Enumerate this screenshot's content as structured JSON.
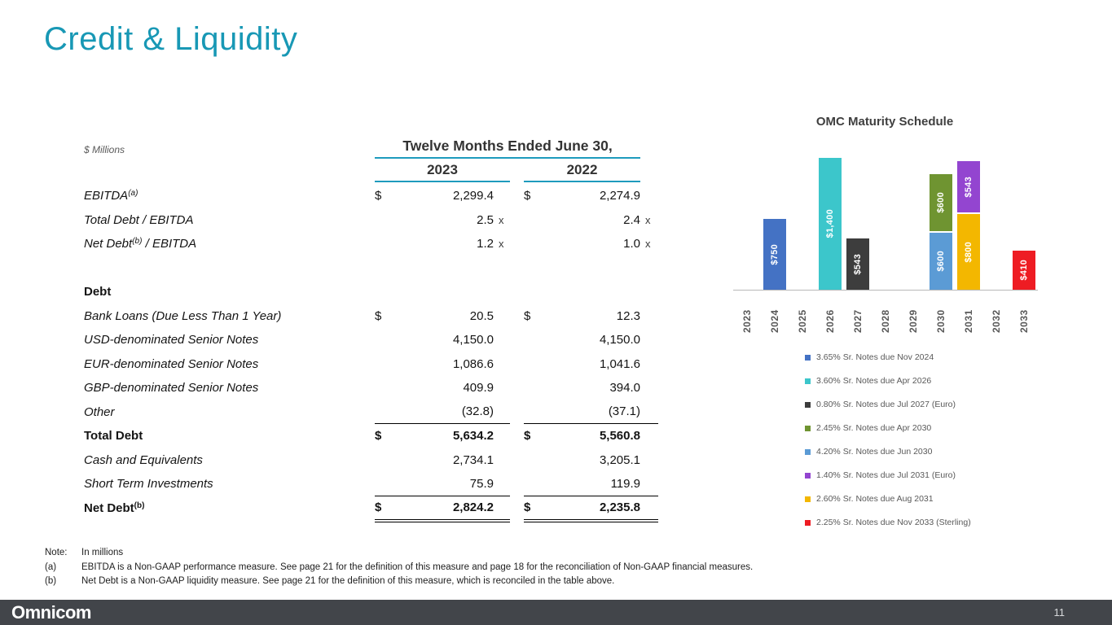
{
  "slide": {
    "title": "Credit & Liquidity",
    "page_number": "11",
    "logo_text": "Omnicom"
  },
  "table": {
    "units_label": "$ Millions",
    "period_header": "Twelve Months Ended June 30,",
    "col_2023": "2023",
    "col_2022": "2022",
    "rows": [
      {
        "label": "EBITDA",
        "sup": "(a)",
        "d1": "$",
        "v1": "2,299.4",
        "d2": "$",
        "v2": "2,274.9"
      },
      {
        "label": "Total Debt / EBITDA",
        "v1": "2.5",
        "x1": "x",
        "v2": "2.4",
        "x2": "x"
      },
      {
        "label": "Net Debt",
        "sup": "(b)",
        "label2": " / EBITDA",
        "v1": "1.2",
        "x1": "x",
        "v2": "1.0",
        "x2": "x"
      },
      {
        "label": "Debt"
      },
      {
        "label": "Bank Loans (Due Less Than 1 Year)",
        "d1": "$",
        "v1": "20.5",
        "d2": "$",
        "v2": "12.3"
      },
      {
        "label": "USD-denominated Senior Notes",
        "v1": "4,150.0",
        "v2": "4,150.0"
      },
      {
        "label": "EUR-denominated Senior Notes",
        "v1": "1,086.6",
        "v2": "1,041.6"
      },
      {
        "label": "GBP-denominated Senior Notes",
        "v1": "409.9",
        "v2": "394.0"
      },
      {
        "label": "Other",
        "v1": "(32.8)",
        "v2": "(37.1)"
      },
      {
        "label": "Total Debt",
        "d1": "$",
        "v1": "5,634.2",
        "d2": "$",
        "v2": "5,560.8"
      },
      {
        "label": "Cash and Equivalents",
        "v1": "2,734.1",
        "v2": "3,205.1"
      },
      {
        "label": "Short Term Investments",
        "v1": "75.9",
        "v2": "119.9"
      },
      {
        "label": "Net Debt",
        "sup": "(b)",
        "d1": "$",
        "v1": "2,824.2",
        "d2": "$",
        "v2": "2,235.8"
      }
    ]
  },
  "chart_data": {
    "type": "bar",
    "title": "OMC Maturity Schedule",
    "unit": "$ Millions",
    "xlabel": "",
    "ylabel": "",
    "ylim": [
      0,
      1400
    ],
    "grid": false,
    "legend_position": "bottom-left",
    "x": [
      "2023",
      "2024",
      "2025",
      "2026",
      "2027",
      "2028",
      "2029",
      "2030",
      "2031",
      "2032",
      "2033"
    ],
    "bars": [
      {
        "year": "2024",
        "total": 750,
        "segments": [
          {
            "series": "3.65% Sr. Notes due Nov 2024",
            "label": "$750",
            "value": 750,
            "color": "#4472c4"
          }
        ]
      },
      {
        "year": "2026",
        "total": 1400,
        "segments": [
          {
            "series": "3.60% Sr. Notes due Apr 2026",
            "label": "$1,400",
            "value": 1400,
            "color": "#3cc6cb"
          }
        ]
      },
      {
        "year": "2027",
        "total": 543,
        "segments": [
          {
            "series": "0.80% Sr. Notes due Jul 2027 (Euro)",
            "label": "$543",
            "value": 543,
            "color": "#3d3d3d"
          }
        ]
      },
      {
        "year": "2030",
        "total": 1200,
        "segments": [
          {
            "series": "2.45% Sr. Notes due Apr 2030",
            "label": "$600",
            "value": 600,
            "color": "#6f9431"
          },
          {
            "series": "4.20% Sr. Notes due Jun 2030",
            "label": "$600",
            "value": 600,
            "color": "#5b9bd5"
          }
        ]
      },
      {
        "year": "2031",
        "total": 1343,
        "segments": [
          {
            "series": "1.40% Sr. Notes due Jul 2031 (Euro)",
            "label": "$543",
            "value": 543,
            "color": "#9345d0"
          },
          {
            "series": "2.60% Sr. Notes due Aug 2031",
            "label": "$800",
            "value": 800,
            "color": "#f3b700"
          }
        ]
      },
      {
        "year": "2033",
        "total": 410,
        "segments": [
          {
            "series": "2.25% Sr. Notes due Nov 2033 (Sterling)",
            "label": "$410",
            "value": 410,
            "color": "#ee1c23"
          }
        ]
      }
    ],
    "legend": [
      {
        "color": "#4472c4",
        "label": "3.65% Sr. Notes due Nov 2024"
      },
      {
        "color": "#3cc6cb",
        "label": "3.60% Sr. Notes due Apr 2026"
      },
      {
        "color": "#3d3d3d",
        "label": "0.80% Sr. Notes due Jul 2027 (Euro)"
      },
      {
        "color": "#6f9431",
        "label": "2.45% Sr. Notes due Apr 2030"
      },
      {
        "color": "#5b9bd5",
        "label": "4.20% Sr. Notes due Jun 2030"
      },
      {
        "color": "#9345d0",
        "label": "1.40% Sr. Notes due Jul 2031 (Euro)"
      },
      {
        "color": "#f3b700",
        "label": "2.60% Sr. Notes due Aug 2031"
      },
      {
        "color": "#ee1c23",
        "label": "2.25% Sr. Notes due Nov 2033 (Sterling)"
      }
    ]
  },
  "notes": {
    "note_label": "Note:",
    "note_text": "In millions",
    "a_label": "(a)",
    "a_text": "EBITDA is a Non-GAAP performance measure.  See page 21 for the definition of this measure and page 18 for the reconciliation of Non-GAAP financial measures.",
    "b_label": "(b)",
    "b_text": "Net Debt is a Non-GAAP liquidity measure. See page 21 for the definition of this measure, which is reconciled in the table above."
  }
}
